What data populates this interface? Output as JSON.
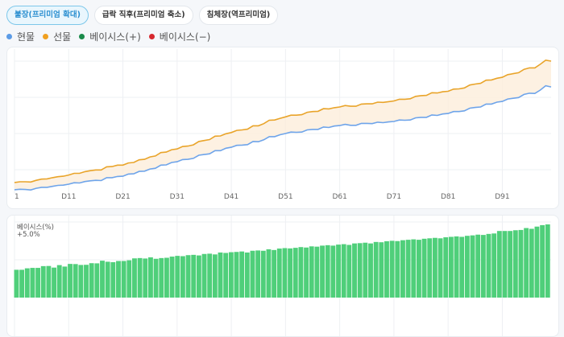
{
  "buttons": [
    {
      "label": "불장(프리미엄 확대)",
      "active": true
    },
    {
      "label": "급락 직후(프리미엄 축소)",
      "active": false
    },
    {
      "label": "침체장(역프리미엄)",
      "active": false
    }
  ],
  "legend": [
    {
      "label": "현물",
      "color": "#5b9be6"
    },
    {
      "label": "선물",
      "color": "#f0a020"
    },
    {
      "label": "베이시스(+)",
      "color": "#1a8a4a"
    },
    {
      "label": "베이시스(−)",
      "color": "#d6282e"
    }
  ],
  "basis_panel": {
    "title": "베이시스(%)",
    "max_label": "+5.0%"
  },
  "chart_data": [
    {
      "type": "line",
      "x_ticks": [
        "1",
        "D11",
        "D21",
        "D31",
        "D41",
        "D51",
        "D61",
        "D71",
        "D81",
        "D91"
      ],
      "ylim": [
        90,
        150
      ],
      "series": [
        {
          "name": "현물",
          "color": "#6ea4ea",
          "values": [
            91.7,
            91.9,
            91.8,
            91.6,
            92.3,
            92.7,
            92.7,
            93.1,
            93.5,
            93.6,
            94.0,
            94.6,
            94.5,
            95.1,
            95.4,
            95.6,
            95.5,
            96.7,
            96.7,
            97.2,
            97.3,
            98.2,
            98.3,
            99.3,
            99.4,
            100.3,
            100.6,
            101.9,
            102.0,
            103.0,
            103.3,
            104.2,
            104.3,
            104.7,
            106.0,
            106.3,
            106.6,
            107.9,
            107.9,
            108.9,
            109.3,
            110.1,
            110.2,
            110.4,
            111.7,
            111.6,
            112.4,
            113.7,
            113.7,
            114.5,
            115.0,
            115.6,
            115.5,
            115.6,
            116.5,
            116.7,
            116.7,
            117.7,
            117.5,
            118.1,
            118.3,
            118.8,
            118.4,
            118.4,
            119.2,
            119.2,
            119.1,
            119.7,
            119.5,
            119.8,
            120.0,
            120.6,
            120.5,
            120.6,
            121.5,
            121.7,
            121.7,
            122.7,
            122.5,
            123.1,
            123.3,
            124.1,
            124.1,
            124.4,
            125.5,
            125.8,
            126.0,
            127.2,
            127.2,
            128.0,
            128.3,
            129.3,
            129.6,
            129.9,
            131.2,
            131.7,
            131.6,
            133.0,
            134.8,
            134.3
          ]
        },
        {
          "name": "선물",
          "color": "#e9a42a",
          "values": [
            94.7,
            95.0,
            95.0,
            94.9,
            95.6,
            96.1,
            96.2,
            96.7,
            97.1,
            97.3,
            97.8,
            98.5,
            98.5,
            99.2,
            99.6,
            99.9,
            99.9,
            101.2,
            101.3,
            101.9,
            101.9,
            102.8,
            103.0,
            104.1,
            104.3,
            105.3,
            105.7,
            107.1,
            107.3,
            108.3,
            108.6,
            109.6,
            109.8,
            110.3,
            111.7,
            112.1,
            112.5,
            113.9,
            114.0,
            114.9,
            115.4,
            116.3,
            116.5,
            116.8,
            118.2,
            118.2,
            119.1,
            120.5,
            120.6,
            121.3,
            121.9,
            122.6,
            122.6,
            122.8,
            123.8,
            124.1,
            124.2,
            125.3,
            125.2,
            125.7,
            126.0,
            126.6,
            126.3,
            126.3,
            127.2,
            127.3,
            127.3,
            128.0,
            127.9,
            128.2,
            128.5,
            129.2,
            129.2,
            129.4,
            130.4,
            130.7,
            130.8,
            131.9,
            131.8,
            132.3,
            132.5,
            133.4,
            133.5,
            133.9,
            135.1,
            135.5,
            135.8,
            137.1,
            137.2,
            137.9,
            138.3,
            139.4,
            139.8,
            140.2,
            141.6,
            142.2,
            142.2,
            143.7,
            145.4,
            145.0
          ]
        }
      ]
    },
    {
      "type": "bar",
      "title": "베이시스(%)",
      "ylim": [
        0,
        5.0
      ],
      "color": "#4fcf7a",
      "values": [
        1.9,
        1.9,
        2.0,
        2.03,
        2.03,
        2.15,
        2.16,
        2.05,
        2.22,
        2.12,
        2.3,
        2.29,
        2.23,
        2.24,
        2.35,
        2.34,
        2.52,
        2.45,
        2.42,
        2.5,
        2.5,
        2.55,
        2.68,
        2.7,
        2.67,
        2.75,
        2.65,
        2.7,
        2.72,
        2.8,
        2.85,
        2.83,
        2.9,
        2.92,
        2.88,
        2.98,
        3.0,
        2.95,
        3.08,
        3.05,
        3.1,
        3.12,
        3.15,
        3.08,
        3.2,
        3.22,
        3.2,
        3.3,
        3.25,
        3.35,
        3.38,
        3.36,
        3.4,
        3.45,
        3.42,
        3.5,
        3.48,
        3.55,
        3.58,
        3.55,
        3.62,
        3.65,
        3.6,
        3.7,
        3.72,
        3.75,
        3.7,
        3.8,
        3.78,
        3.85,
        3.88,
        3.86,
        3.92,
        3.95,
        3.98,
        3.95,
        4.02,
        4.05,
        4.08,
        4.05,
        4.12,
        4.15,
        4.18,
        4.15,
        4.22,
        4.25,
        4.3,
        4.28,
        4.35,
        4.38,
        4.55,
        4.55,
        4.55,
        4.6,
        4.62,
        4.75,
        4.7,
        4.85,
        4.95,
        5.0
      ]
    }
  ]
}
